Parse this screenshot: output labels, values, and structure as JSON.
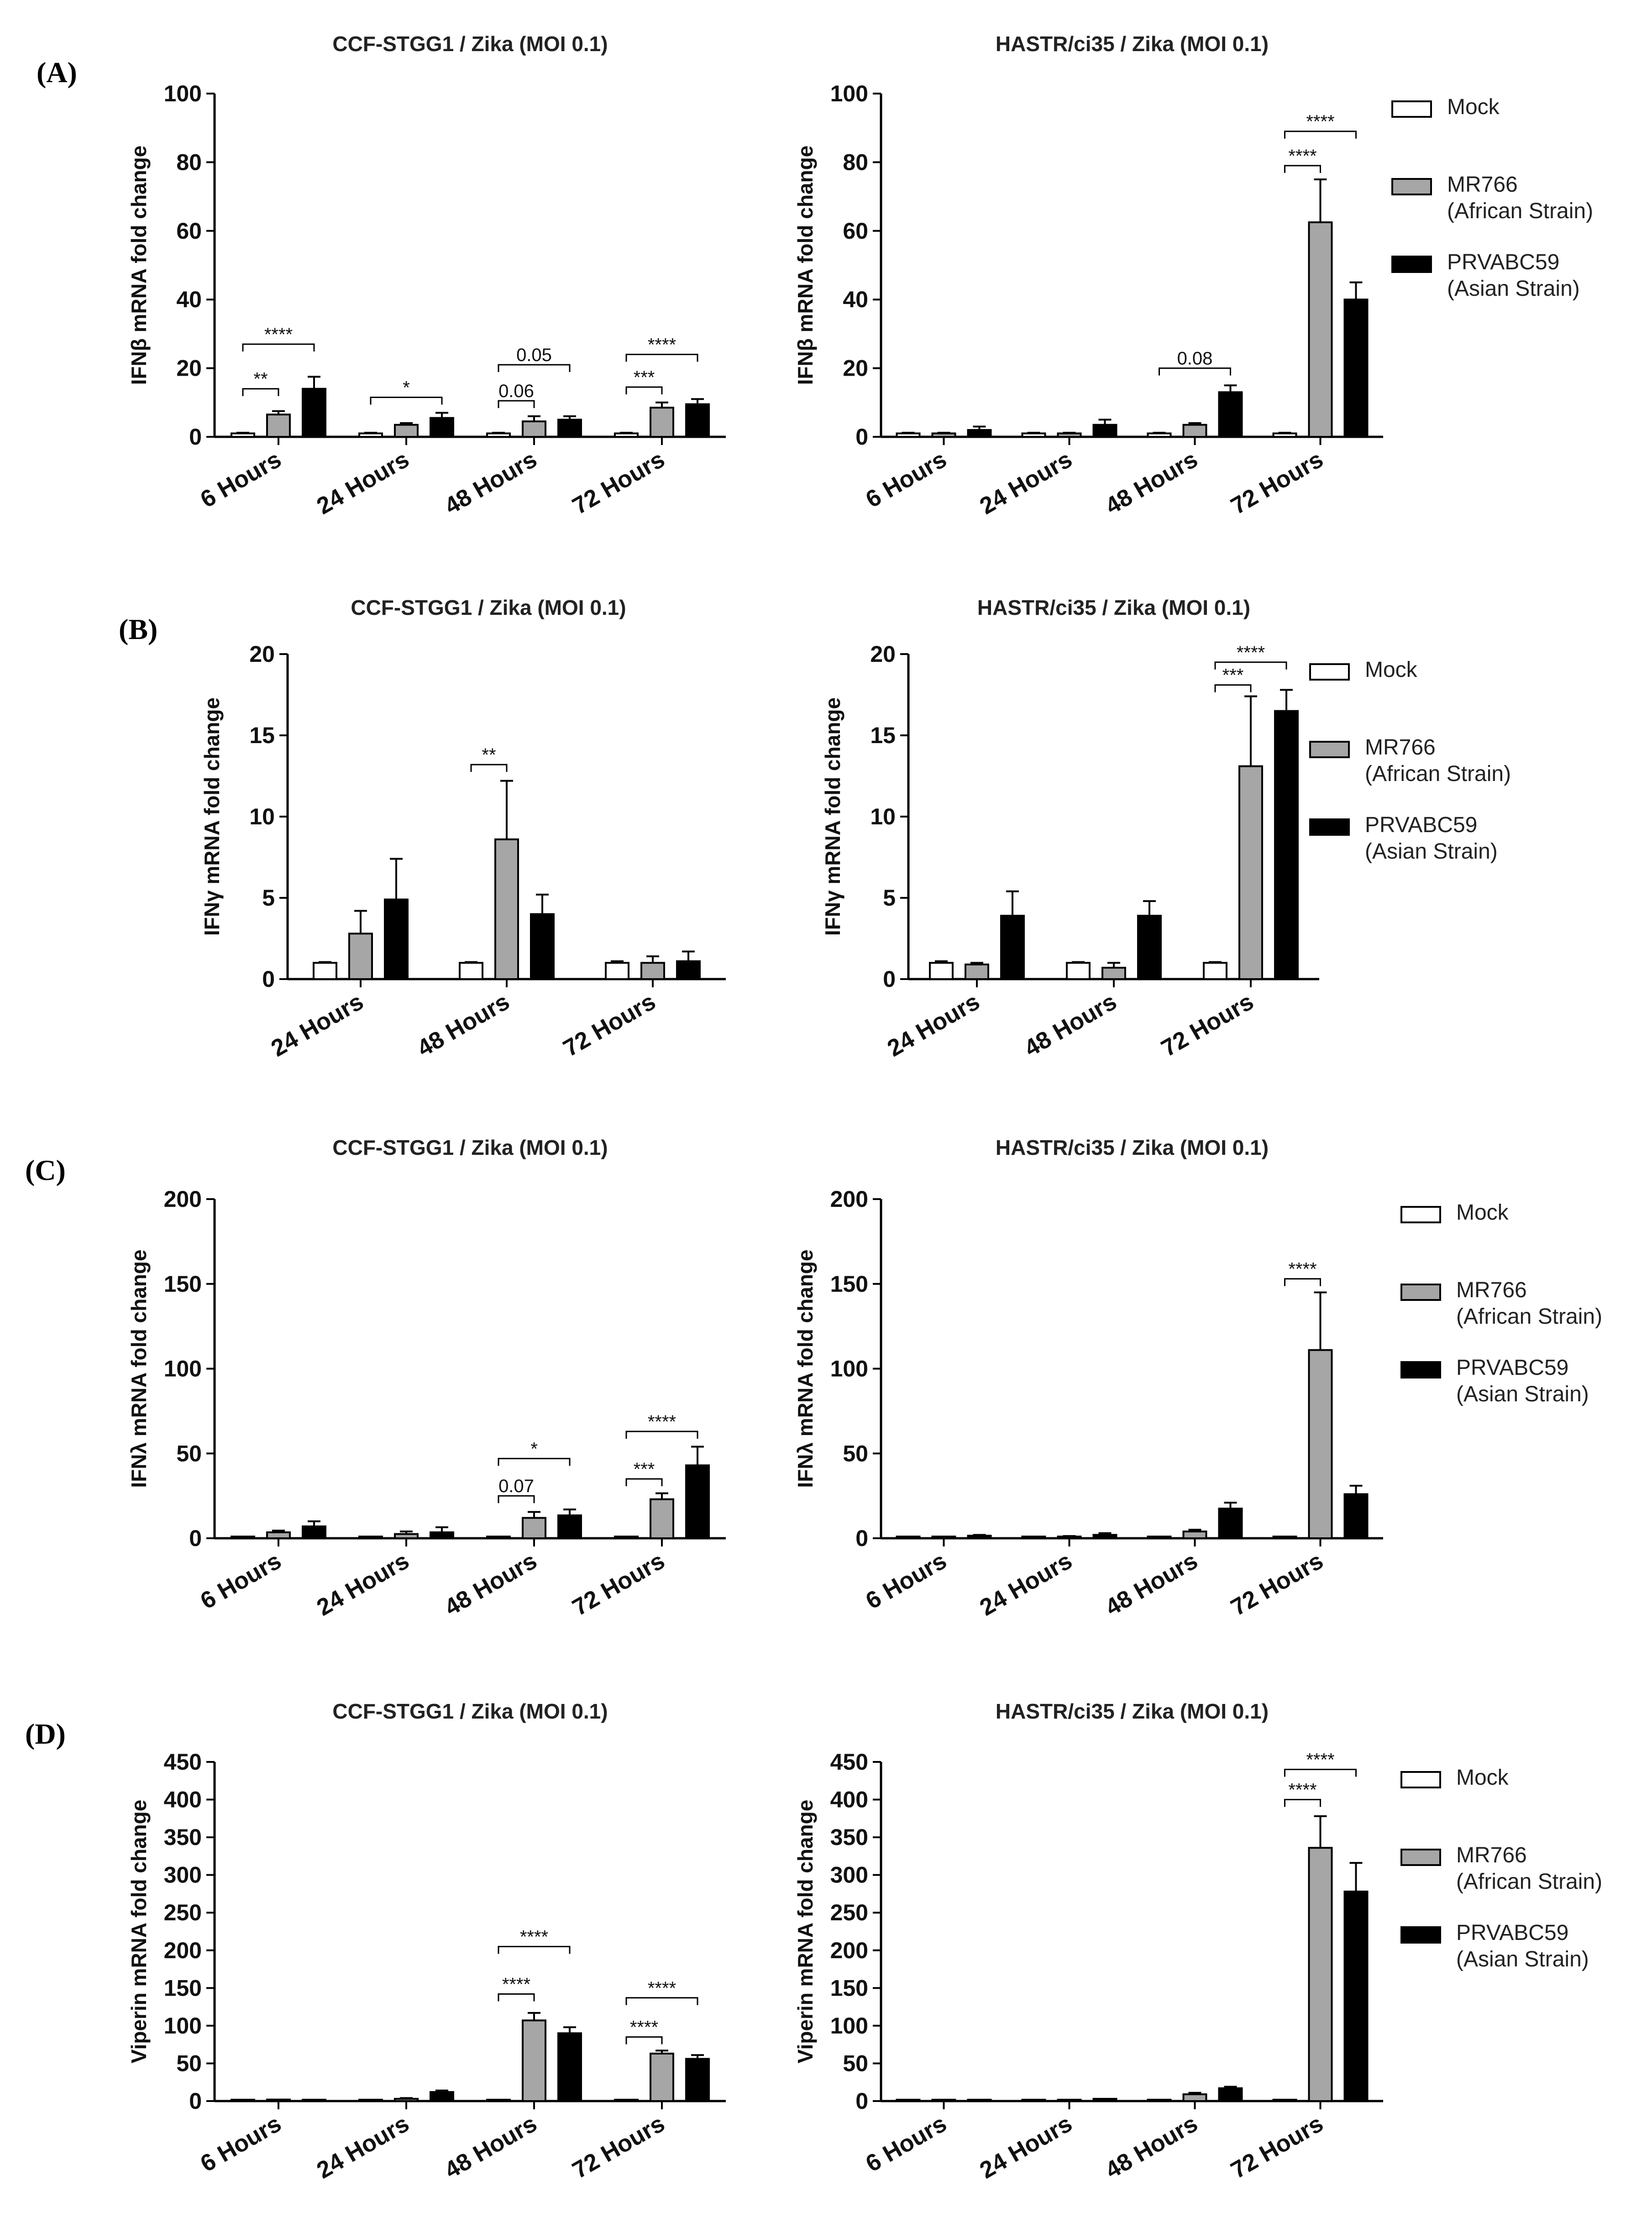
{
  "chart_data": [
    {
      "type": "bar",
      "panel": "(A)",
      "title": "CCF-STGG1 / Zika (MOI 0.1)",
      "ylabel": "IFNβ mRNA fold change",
      "ylim": [
        0,
        100
      ],
      "yticks": [
        0,
        20,
        40,
        60,
        80,
        100
      ],
      "categories": [
        "6 Hours",
        "24 Hours",
        "48 Hours",
        "72 Hours"
      ],
      "series": [
        {
          "name": "Mock",
          "values": [
            1,
            1,
            1,
            1
          ],
          "errors": [
            0.2,
            0.2,
            0.2,
            0.2
          ]
        },
        {
          "name": "MR766 (African Strain)",
          "values": [
            6.5,
            3.5,
            4.5,
            8.5
          ],
          "errors": [
            1,
            0.5,
            1.5,
            1.5
          ]
        },
        {
          "name": "PRVABC59 (Asian Strain)",
          "values": [
            14,
            5.5,
            5,
            9.5
          ],
          "errors": [
            3.5,
            1.5,
            1,
            1.5
          ]
        }
      ],
      "annotations": [
        {
          "cat": 0,
          "from": 0,
          "to": 1,
          "y": 14,
          "label": "**"
        },
        {
          "cat": 0,
          "from": 0,
          "to": 2,
          "y": 27,
          "label": "****"
        },
        {
          "cat": 1,
          "from": 0,
          "to": 2,
          "y": 11.5,
          "label": "*"
        },
        {
          "cat": 2,
          "from": 0,
          "to": 1,
          "y": 10.5,
          "label": "0.06"
        },
        {
          "cat": 2,
          "from": 0,
          "to": 2,
          "y": 21,
          "label": "0.05"
        },
        {
          "cat": 3,
          "from": 0,
          "to": 1,
          "y": 14.5,
          "label": "***"
        },
        {
          "cat": 3,
          "from": 0,
          "to": 2,
          "y": 24,
          "label": "****"
        }
      ]
    },
    {
      "type": "bar",
      "panel": "",
      "title": "HASTR/ci35 / Zika (MOI 0.1)",
      "ylabel": "IFNβ mRNA fold change",
      "ylim": [
        0,
        100
      ],
      "yticks": [
        0,
        20,
        40,
        60,
        80,
        100
      ],
      "categories": [
        "6 Hours",
        "24 Hours",
        "48 Hours",
        "72 Hours"
      ],
      "series": [
        {
          "name": "Mock",
          "values": [
            1,
            1,
            1,
            1
          ],
          "errors": [
            0.2,
            0.2,
            0.2,
            0.2
          ]
        },
        {
          "name": "MR766 (African Strain)",
          "values": [
            1,
            1,
            3.5,
            62.5
          ],
          "errors": [
            0.2,
            0.2,
            0.5,
            12.5
          ]
        },
        {
          "name": "PRVABC59 (Asian Strain)",
          "values": [
            2,
            3.5,
            13,
            40
          ],
          "errors": [
            1,
            1.5,
            2,
            5
          ]
        }
      ],
      "annotations": [
        {
          "cat": 2,
          "from": 0,
          "to": 2,
          "y": 20,
          "label": "0.08"
        },
        {
          "cat": 3,
          "from": 0,
          "to": 1,
          "y": 79,
          "label": "****"
        },
        {
          "cat": 3,
          "from": 0,
          "to": 2,
          "y": 89,
          "label": "****"
        }
      ]
    },
    {
      "type": "bar",
      "panel": "(B)",
      "title": "CCF-STGG1 / Zika (MOI 0.1)",
      "ylabel": "IFNγ mRNA fold change",
      "ylim": [
        0,
        20
      ],
      "yticks": [
        0,
        5,
        10,
        15,
        20
      ],
      "categories": [
        "24 Hours",
        "48 Hours",
        "72 Hours"
      ],
      "series": [
        {
          "name": "Mock",
          "values": [
            1,
            1,
            1
          ],
          "errors": [
            0.05,
            0.05,
            0.1
          ]
        },
        {
          "name": "MR766 (African Strain)",
          "values": [
            2.8,
            8.6,
            1
          ],
          "errors": [
            1.4,
            3.6,
            0.4
          ]
        },
        {
          "name": "PRVABC59 (Asian Strain)",
          "values": [
            4.9,
            4,
            1.1
          ],
          "errors": [
            2.5,
            1.2,
            0.6
          ]
        }
      ],
      "annotations": [
        {
          "cat": 1,
          "from": 0,
          "to": 1,
          "y": 13.2,
          "label": "**"
        }
      ]
    },
    {
      "type": "bar",
      "panel": "",
      "title": "HASTR/ci35 / Zika (MOI 0.1)",
      "ylabel": "IFNγ mRNA fold change",
      "ylim": [
        0,
        20
      ],
      "yticks": [
        0,
        5,
        10,
        15,
        20
      ],
      "categories": [
        "24 Hours",
        "48 Hours",
        "72 Hours"
      ],
      "series": [
        {
          "name": "Mock",
          "values": [
            1,
            1,
            1
          ],
          "errors": [
            0.1,
            0.05,
            0.05
          ]
        },
        {
          "name": "MR766 (African Strain)",
          "values": [
            0.9,
            0.7,
            13.1
          ],
          "errors": [
            0.1,
            0.3,
            4.3
          ]
        },
        {
          "name": "PRVABC59 (Asian Strain)",
          "values": [
            3.9,
            3.9,
            16.5
          ],
          "errors": [
            1.5,
            0.9,
            1.3
          ]
        }
      ],
      "annotations": [
        {
          "cat": 2,
          "from": 0,
          "to": 1,
          "y": 18.1,
          "label": "***"
        },
        {
          "cat": 2,
          "from": 0,
          "to": 2,
          "y": 19.5,
          "label": "****"
        }
      ]
    },
    {
      "type": "bar",
      "panel": "(C)",
      "title": "CCF-STGG1 / Zika (MOI 0.1)",
      "ylabel": "IFNλ mRNA fold change",
      "ylim": [
        0,
        200
      ],
      "yticks": [
        0,
        50,
        100,
        150,
        200
      ],
      "categories": [
        "6 Hours",
        "24 Hours",
        "48 Hours",
        "72 Hours"
      ],
      "series": [
        {
          "name": "Mock",
          "values": [
            1,
            1,
            1,
            1
          ],
          "errors": [
            0.2,
            0.2,
            0.2,
            0.2
          ]
        },
        {
          "name": "MR766 (African Strain)",
          "values": [
            3.5,
            2.5,
            12,
            23
          ],
          "errors": [
            1,
            1.5,
            3.5,
            3.5
          ]
        },
        {
          "name": "PRVABC59 (Asian Strain)",
          "values": [
            7,
            3.5,
            13.5,
            43
          ],
          "errors": [
            3,
            3,
            3.5,
            11
          ]
        }
      ],
      "annotations": [
        {
          "cat": 2,
          "from": 0,
          "to": 1,
          "y": 25,
          "label": "0.07"
        },
        {
          "cat": 2,
          "from": 0,
          "to": 2,
          "y": 47,
          "label": "*"
        },
        {
          "cat": 3,
          "from": 0,
          "to": 1,
          "y": 35,
          "label": "***"
        },
        {
          "cat": 3,
          "from": 0,
          "to": 2,
          "y": 63,
          "label": "****"
        }
      ]
    },
    {
      "type": "bar",
      "panel": "",
      "title": "HASTR/ci35 / Zika (MOI 0.1)",
      "ylabel": "IFNλ mRNA fold change",
      "ylim": [
        0,
        200
      ],
      "yticks": [
        0,
        50,
        100,
        150,
        200
      ],
      "categories": [
        "6 Hours",
        "24 Hours",
        "48 Hours",
        "72 Hours"
      ],
      "series": [
        {
          "name": "Mock",
          "values": [
            1,
            1,
            1,
            1
          ],
          "errors": [
            0.2,
            0.2,
            0.2,
            0.2
          ]
        },
        {
          "name": "MR766 (African Strain)",
          "values": [
            1,
            1,
            4,
            111
          ],
          "errors": [
            0.2,
            0.3,
            1,
            34
          ]
        },
        {
          "name": "PRVABC59 (Asian Strain)",
          "values": [
            1.5,
            2,
            17.5,
            26
          ],
          "errors": [
            0.5,
            1,
            3.5,
            5
          ]
        }
      ],
      "annotations": [
        {
          "cat": 3,
          "from": 0,
          "to": 1,
          "y": 153,
          "label": "****"
        }
      ]
    },
    {
      "type": "bar",
      "panel": "(D)",
      "title": "CCF-STGG1 / Zika (MOI 0.1)",
      "ylabel": "Viperin mRNA fold change",
      "ylim": [
        0,
        450
      ],
      "yticks": [
        0,
        50,
        100,
        150,
        200,
        250,
        300,
        350,
        400,
        450
      ],
      "categories": [
        "6 Hours",
        "24 Hours",
        "48 Hours",
        "72 Hours"
      ],
      "series": [
        {
          "name": "Mock",
          "values": [
            1,
            1,
            1,
            1
          ],
          "errors": [
            0.2,
            0.2,
            0.2,
            0.2
          ]
        },
        {
          "name": "MR766 (African Strain)",
          "values": [
            2,
            3,
            107,
            63
          ],
          "errors": [
            0.5,
            1,
            10,
            4
          ]
        },
        {
          "name": "PRVABC59 (Asian Strain)",
          "values": [
            1.5,
            12,
            90,
            56
          ],
          "errors": [
            0.5,
            2,
            8,
            5
          ]
        }
      ],
      "annotations": [
        {
          "cat": 2,
          "from": 0,
          "to": 1,
          "y": 142,
          "label": "****"
        },
        {
          "cat": 2,
          "from": 0,
          "to": 2,
          "y": 205,
          "label": "****"
        },
        {
          "cat": 3,
          "from": 0,
          "to": 1,
          "y": 85,
          "label": "****"
        },
        {
          "cat": 3,
          "from": 0,
          "to": 2,
          "y": 137,
          "label": "****"
        }
      ]
    },
    {
      "type": "bar",
      "panel": "",
      "title": "HASTR/ci35 / Zika (MOI 0.1)",
      "ylabel": "Viperin mRNA fold change",
      "ylim": [
        0,
        450
      ],
      "yticks": [
        0,
        50,
        100,
        150,
        200,
        250,
        300,
        350,
        400,
        450
      ],
      "categories": [
        "6 Hours",
        "24 Hours",
        "48 Hours",
        "72 Hours"
      ],
      "series": [
        {
          "name": "Mock",
          "values": [
            1,
            1,
            1,
            1
          ],
          "errors": [
            0.2,
            0.2,
            0.2,
            0.2
          ]
        },
        {
          "name": "MR766 (African Strain)",
          "values": [
            1,
            1,
            9,
            336
          ],
          "errors": [
            0.2,
            0.3,
            2,
            42
          ]
        },
        {
          "name": "PRVABC59 (Asian Strain)",
          "values": [
            1.5,
            3,
            17,
            278
          ],
          "errors": [
            0.5,
            0.5,
            2,
            38
          ]
        }
      ],
      "annotations": [
        {
          "cat": 3,
          "from": 0,
          "to": 1,
          "y": 400,
          "label": "****"
        },
        {
          "cat": 3,
          "from": 0,
          "to": 2,
          "y": 440,
          "label": "****"
        }
      ]
    }
  ],
  "legend": {
    "items": [
      {
        "line1": "Mock",
        "line2": "",
        "fill": "#ffffff"
      },
      {
        "line1": "MR766",
        "line2": "(African Strain)",
        "fill": "#a6a6a6"
      },
      {
        "line1": "PRVABC59",
        "line2": "(Asian Strain)",
        "fill": "#000000"
      }
    ]
  },
  "colors": {
    "mock": "#ffffff",
    "mr766": "#a6a6a6",
    "prvabc59": "#000000",
    "axis": "#000000"
  }
}
